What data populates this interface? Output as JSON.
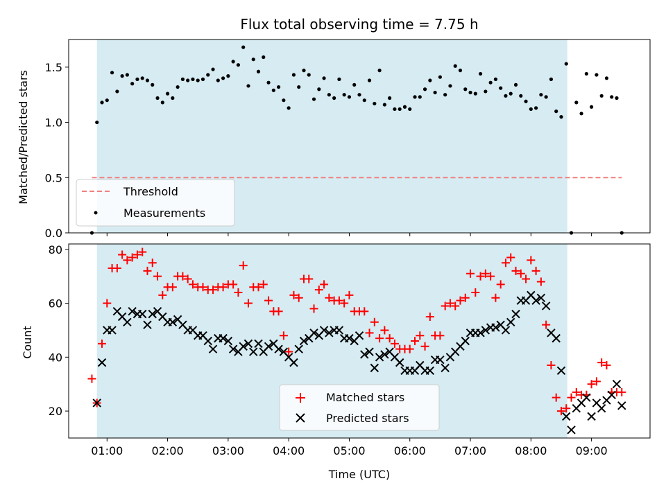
{
  "chart_data": [
    {
      "type": "scatter",
      "title": "Flux total observing time = 7.75 h",
      "ylabel": "Matched/Predicted stars",
      "xlim": [
        "00:22",
        "09:58"
      ],
      "ylim": [
        0,
        1.75
      ],
      "yticks": [
        "0.0",
        "0.5",
        "1.0",
        "1.5"
      ],
      "shaded_span": [
        "00:50",
        "08:36"
      ],
      "threshold": {
        "name": "Threshold",
        "y": 0.5,
        "x": [
          "00:45",
          "09:30"
        ],
        "color": "#f08080"
      },
      "legend": {
        "placement": "lower-left"
      },
      "series": [
        {
          "name": "Measurements",
          "marker": "dot",
          "color": "#000000",
          "x": [
            "00:45",
            "00:50",
            "00:55",
            "01:00",
            "01:05",
            "01:10",
            "01:15",
            "01:20",
            "01:25",
            "01:30",
            "01:35",
            "01:40",
            "01:45",
            "01:50",
            "01:55",
            "02:00",
            "02:05",
            "02:10",
            "02:15",
            "02:20",
            "02:25",
            "02:30",
            "02:35",
            "02:40",
            "02:45",
            "02:50",
            "02:55",
            "03:00",
            "03:05",
            "03:10",
            "03:15",
            "03:20",
            "03:25",
            "03:30",
            "03:35",
            "03:40",
            "03:45",
            "03:50",
            "03:55",
            "04:00",
            "04:05",
            "04:10",
            "04:15",
            "04:20",
            "04:25",
            "04:30",
            "04:35",
            "04:40",
            "04:45",
            "04:50",
            "04:55",
            "05:00",
            "05:05",
            "05:10",
            "05:15",
            "05:20",
            "05:25",
            "05:30",
            "05:35",
            "05:40",
            "05:45",
            "05:50",
            "05:55",
            "06:00",
            "06:05",
            "06:10",
            "06:15",
            "06:20",
            "06:25",
            "06:30",
            "06:35",
            "06:40",
            "06:45",
            "06:50",
            "06:55",
            "07:00",
            "07:05",
            "07:10",
            "07:15",
            "07:20",
            "07:25",
            "07:30",
            "07:35",
            "07:40",
            "07:45",
            "07:50",
            "07:55",
            "08:00",
            "08:05",
            "08:10",
            "08:15",
            "08:20",
            "08:25",
            "08:30",
            "08:35",
            "08:40",
            "08:45",
            "08:50",
            "08:55",
            "09:00",
            "09:05",
            "09:10",
            "09:15",
            "09:20",
            "09:25",
            "09:30"
          ],
          "y": [
            0.0,
            1.0,
            1.18,
            1.2,
            1.45,
            1.28,
            1.42,
            1.43,
            1.35,
            1.39,
            1.4,
            1.38,
            1.34,
            1.22,
            1.18,
            1.26,
            1.22,
            1.32,
            1.39,
            1.38,
            1.39,
            1.38,
            1.39,
            1.43,
            1.48,
            1.38,
            1.4,
            1.42,
            1.55,
            1.52,
            1.68,
            1.33,
            1.57,
            1.46,
            1.59,
            1.36,
            1.29,
            1.32,
            1.2,
            1.13,
            1.43,
            1.32,
            1.47,
            1.43,
            1.21,
            1.3,
            1.4,
            1.25,
            1.22,
            1.39,
            1.25,
            1.23,
            1.34,
            1.25,
            1.2,
            1.38,
            1.17,
            1.47,
            1.16,
            1.22,
            1.12,
            1.12,
            1.14,
            1.12,
            1.23,
            1.23,
            1.3,
            1.38,
            1.27,
            1.41,
            1.25,
            1.33,
            1.51,
            1.47,
            1.3,
            1.27,
            1.26,
            1.44,
            1.28,
            1.36,
            1.39,
            1.31,
            1.24,
            1.26,
            1.34,
            1.24,
            1.19,
            1.12,
            1.13,
            1.25,
            1.23,
            1.39,
            1.1,
            1.05,
            1.53,
            0.0,
            1.18,
            1.08,
            1.44,
            1.14,
            1.43,
            1.24,
            1.4,
            1.23,
            1.22,
            0.0
          ]
        }
      ]
    },
    {
      "type": "scatter",
      "xlabel": "Time (UTC)",
      "ylabel": "Count",
      "xlim": [
        "00:22",
        "09:58"
      ],
      "ylim": [
        10,
        82
      ],
      "yticks": [
        "20",
        "40",
        "60",
        "80"
      ],
      "xticks": [
        "01:00",
        "02:00",
        "03:00",
        "04:00",
        "05:00",
        "06:00",
        "07:00",
        "08:00",
        "09:00"
      ],
      "shaded_span": [
        "00:50",
        "08:36"
      ],
      "legend": {
        "placement": "lower-center"
      },
      "series": [
        {
          "name": "Matched stars",
          "marker": "plus",
          "color": "#ff0000",
          "x": [
            "00:45",
            "00:50",
            "00:55",
            "01:00",
            "01:05",
            "01:10",
            "01:15",
            "01:20",
            "01:25",
            "01:30",
            "01:35",
            "01:40",
            "01:45",
            "01:50",
            "01:55",
            "02:00",
            "02:05",
            "02:10",
            "02:15",
            "02:20",
            "02:25",
            "02:30",
            "02:35",
            "02:40",
            "02:45",
            "02:50",
            "02:55",
            "03:00",
            "03:05",
            "03:10",
            "03:15",
            "03:20",
            "03:25",
            "03:30",
            "03:35",
            "03:40",
            "03:45",
            "03:50",
            "03:55",
            "04:00",
            "04:05",
            "04:10",
            "04:15",
            "04:20",
            "04:25",
            "04:30",
            "04:35",
            "04:40",
            "04:45",
            "04:50",
            "04:55",
            "05:00",
            "05:05",
            "05:10",
            "05:15",
            "05:20",
            "05:25",
            "05:30",
            "05:35",
            "05:40",
            "05:45",
            "05:50",
            "05:55",
            "06:00",
            "06:05",
            "06:10",
            "06:15",
            "06:20",
            "06:25",
            "06:30",
            "06:35",
            "06:40",
            "06:45",
            "06:50",
            "06:55",
            "07:00",
            "07:05",
            "07:10",
            "07:15",
            "07:20",
            "07:25",
            "07:30",
            "07:35",
            "07:40",
            "07:45",
            "07:50",
            "07:55",
            "08:00",
            "08:05",
            "08:10",
            "08:15",
            "08:20",
            "08:25",
            "08:30",
            "08:35",
            "08:40",
            "08:45",
            "08:50",
            "08:55",
            "09:00",
            "09:05",
            "09:10",
            "09:15",
            "09:20",
            "09:25",
            "09:30"
          ],
          "y": [
            32,
            23,
            45,
            60,
            73,
            73,
            78,
            76,
            77,
            78,
            79,
            72,
            75,
            70,
            63,
            66,
            66,
            70,
            70,
            69,
            67,
            66,
            66,
            65,
            65,
            66,
            66,
            67,
            67,
            64,
            74,
            60,
            66,
            66,
            67,
            61,
            57,
            57,
            48,
            42,
            63,
            62,
            69,
            69,
            58,
            65,
            67,
            62,
            61,
            61,
            60,
            63,
            57,
            57,
            57,
            49,
            53,
            47,
            50,
            47,
            45,
            43,
            43,
            43,
            46,
            48,
            44,
            55,
            48,
            48,
            59,
            60,
            59,
            61,
            62,
            71,
            64,
            70,
            71,
            70,
            62,
            67,
            75,
            77,
            72,
            71,
            69,
            76,
            72,
            68,
            52,
            37,
            25,
            20,
            21,
            25,
            27,
            26,
            26,
            30,
            31,
            38,
            37,
            27,
            27,
            27
          ]
        },
        {
          "name": "Predicted stars",
          "marker": "x",
          "color": "#000000",
          "x": [
            "00:50",
            "00:55",
            "01:00",
            "01:05",
            "01:10",
            "01:15",
            "01:20",
            "01:25",
            "01:30",
            "01:35",
            "01:40",
            "01:45",
            "01:50",
            "01:55",
            "02:00",
            "02:05",
            "02:10",
            "02:15",
            "02:20",
            "02:25",
            "02:30",
            "02:35",
            "02:40",
            "02:45",
            "02:50",
            "02:55",
            "03:00",
            "03:05",
            "03:10",
            "03:15",
            "03:20",
            "03:25",
            "03:30",
            "03:35",
            "03:40",
            "03:45",
            "03:50",
            "03:55",
            "04:00",
            "04:05",
            "04:10",
            "04:15",
            "04:20",
            "04:25",
            "04:30",
            "04:35",
            "04:40",
            "04:45",
            "04:50",
            "04:55",
            "05:00",
            "05:05",
            "05:10",
            "05:15",
            "05:20",
            "05:25",
            "05:30",
            "05:35",
            "05:40",
            "05:45",
            "05:50",
            "05:55",
            "06:00",
            "06:05",
            "06:10",
            "06:15",
            "06:20",
            "06:25",
            "06:30",
            "06:35",
            "06:40",
            "06:45",
            "06:50",
            "06:55",
            "07:00",
            "07:05",
            "07:10",
            "07:15",
            "07:20",
            "07:25",
            "07:30",
            "07:35",
            "07:40",
            "07:45",
            "07:50",
            "07:55",
            "08:00",
            "08:05",
            "08:10",
            "08:15",
            "08:20",
            "08:25",
            "08:30",
            "08:35",
            "08:40",
            "08:45",
            "08:50",
            "08:55",
            "09:00",
            "09:05",
            "09:10",
            "09:15",
            "09:20",
            "09:25",
            "09:30"
          ],
          "y": [
            23,
            38,
            50,
            50,
            57,
            55,
            53,
            57,
            56,
            56,
            52,
            56,
            57,
            55,
            53,
            53,
            54,
            52,
            50,
            50,
            48,
            48,
            46,
            43,
            47,
            47,
            46,
            43,
            42,
            44,
            45,
            42,
            45,
            42,
            44,
            45,
            43,
            42,
            40,
            38,
            43,
            46,
            47,
            49,
            48,
            50,
            49,
            50,
            50,
            47,
            47,
            46,
            48,
            41,
            42,
            36,
            40,
            41,
            42,
            40,
            38,
            35,
            35,
            35,
            37,
            35,
            35,
            39,
            39,
            36,
            40,
            42,
            44,
            46,
            49,
            49,
            49,
            50,
            51,
            51,
            52,
            50,
            53,
            56,
            61,
            61,
            63,
            61,
            62,
            59,
            49,
            47,
            35,
            18,
            13,
            21,
            23,
            25,
            18,
            23,
            21,
            24,
            26,
            30,
            22
          ]
        }
      ]
    }
  ]
}
